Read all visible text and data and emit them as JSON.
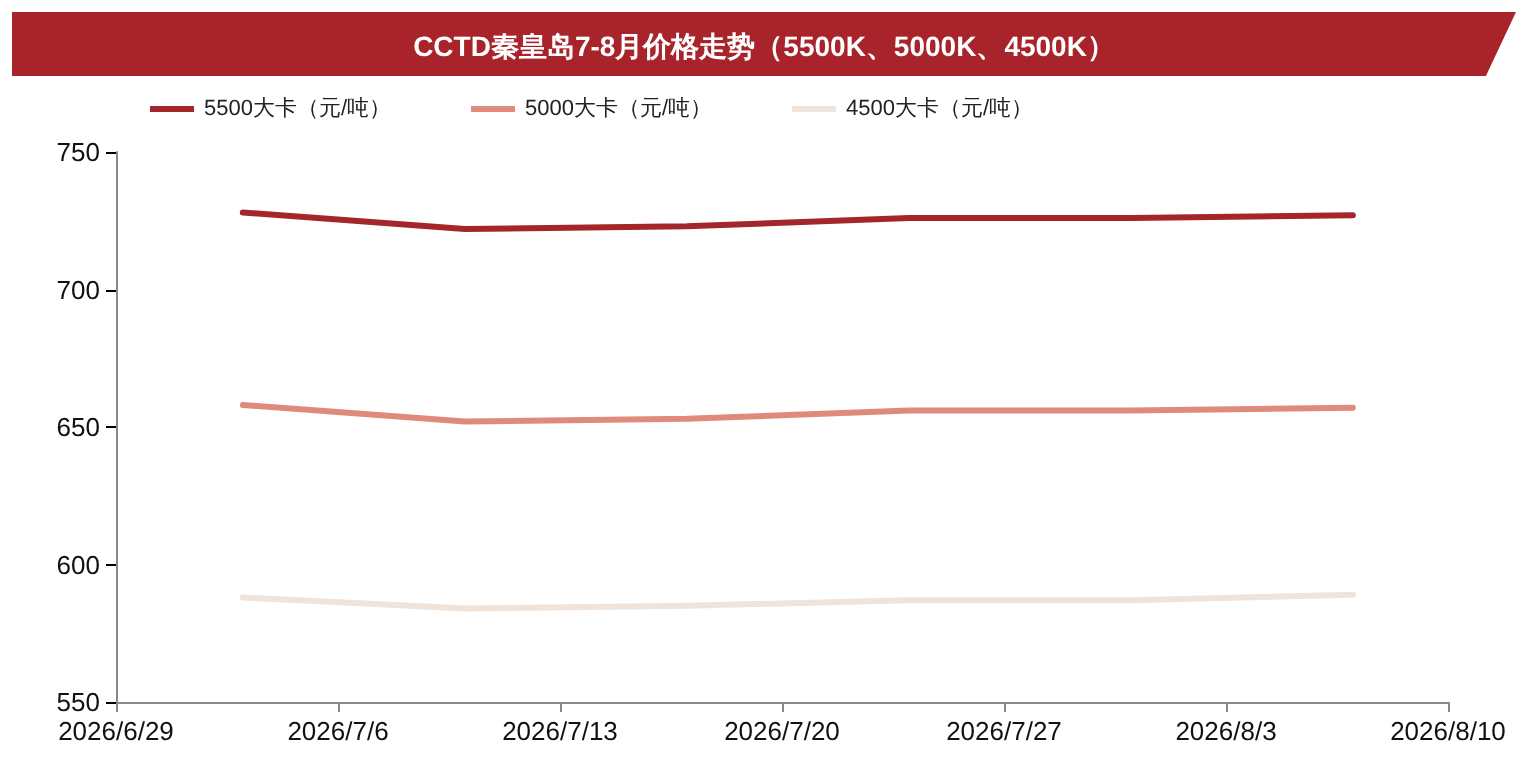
{
  "chart_data": {
    "type": "line",
    "title": "CCTD秦皇岛7-8月价格走势（5500K、5000K、4500K）",
    "x": [
      "2026-07-03",
      "2026-07-10",
      "2026-07-17",
      "2026-07-24",
      "2026-07-31",
      "2026-08-07"
    ],
    "series": [
      {
        "name": "5500大卡（元/吨）",
        "color": "#a3262b",
        "values": [
          728,
          722,
          723,
          726,
          726,
          727
        ]
      },
      {
        "name": "5000大卡（元/吨）",
        "color": "#e08a7c",
        "values": [
          658,
          652,
          653,
          656,
          656,
          657
        ]
      },
      {
        "name": "4500大卡（元/吨）",
        "color": "#f0e3d9",
        "values": [
          588,
          584,
          585,
          587,
          587,
          589
        ]
      }
    ],
    "xlim": [
      "2026-06-29",
      "2026-08-10"
    ],
    "xticks": [
      {
        "value": "2026-06-29",
        "label": "2026/6/29"
      },
      {
        "value": "2026-07-06",
        "label": "2026/7/6"
      },
      {
        "value": "2026-07-13",
        "label": "2026/7/13"
      },
      {
        "value": "2026-07-20",
        "label": "2026/7/20"
      },
      {
        "value": "2026-07-27",
        "label": "2026/7/27"
      },
      {
        "value": "2026-08-03",
        "label": "2026/8/3"
      },
      {
        "value": "2026-08-10",
        "label": "2026/8/10"
      }
    ],
    "ylim": [
      550,
      750
    ],
    "yticks": [
      550,
      600,
      650,
      700,
      750
    ],
    "grid": false,
    "legend": "top left",
    "marker": "none",
    "line_style": "solid"
  }
}
